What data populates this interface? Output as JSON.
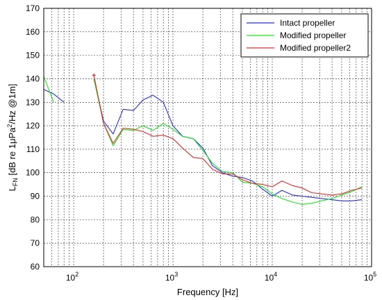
{
  "chart_data": {
    "type": "line",
    "xscale": "log",
    "xlabel": "Frequency [Hz]",
    "ylabel_main": "L",
    "ylabel_sub": "FN",
    "ylabel_rest": " [dB re 1",
    "ylabel_mu": "μ",
    "ylabel_pa": "Pa",
    "ylabel_sup": "2",
    "ylabel_end": "/Hz @1m]",
    "xlim": [
      50,
      100000
    ],
    "ylim": [
      60,
      170
    ],
    "yticks": [
      "60",
      "70",
      "80",
      "90",
      "100",
      "110",
      "120",
      "130",
      "140",
      "150",
      "160",
      "170"
    ],
    "xticks": [
      {
        "base": "10",
        "exp": "2"
      },
      {
        "base": "10",
        "exp": "3"
      },
      {
        "base": "10",
        "exp": "4"
      },
      {
        "base": "10",
        "exp": "5"
      }
    ],
    "grid": true,
    "legend_position": "top-right",
    "series": [
      {
        "name": "Intact propeller",
        "color": "#2a2ad6",
        "segments": [
          [
            [
              50,
              135.5
            ],
            [
              63,
              133.5
            ],
            [
              80,
              130
            ]
          ],
          [
            [
              160,
              140
            ],
            [
              200,
              122
            ],
            [
              250,
              116.5
            ],
            [
              315,
              127
            ],
            [
              400,
              126.5
            ],
            [
              500,
              131
            ],
            [
              630,
              133
            ],
            [
              800,
              130
            ],
            [
              1000,
              120
            ],
            [
              1250,
              115.5
            ],
            [
              1600,
              114.5
            ],
            [
              2000,
              110.5
            ],
            [
              2500,
              103
            ],
            [
              3150,
              100
            ],
            [
              4000,
              98.5
            ],
            [
              5000,
              98
            ],
            [
              6300,
              96.5
            ],
            [
              8000,
              93
            ],
            [
              10000,
              90
            ],
            [
              12500,
              92.5
            ],
            [
              16000,
              90.5
            ],
            [
              20000,
              90
            ],
            [
              25000,
              89.5
            ],
            [
              31500,
              89
            ],
            [
              40000,
              88.5
            ],
            [
              50000,
              88
            ],
            [
              63000,
              88
            ],
            [
              80000,
              88.5
            ]
          ]
        ]
      },
      {
        "name": "Modified propeller",
        "color": "#19e619",
        "segments": [
          [
            [
              50,
              141
            ],
            [
              63,
              130
            ]
          ],
          [
            [
              160,
              140
            ],
            [
              200,
              121
            ],
            [
              250,
              111.5
            ],
            [
              315,
              118.5
            ],
            [
              400,
              118
            ],
            [
              500,
              120
            ],
            [
              630,
              118
            ],
            [
              800,
              121
            ],
            [
              1000,
              118.5
            ],
            [
              1250,
              115.5
            ],
            [
              1600,
              114.5
            ],
            [
              2000,
              109.5
            ],
            [
              2500,
              104
            ],
            [
              3150,
              100.5
            ],
            [
              4000,
              100
            ],
            [
              5000,
              96
            ],
            [
              6300,
              95.5
            ],
            [
              8000,
              94
            ],
            [
              10000,
              91
            ],
            [
              12500,
              89
            ],
            [
              16000,
              87.5
            ],
            [
              20000,
              86.5
            ],
            [
              25000,
              87
            ],
            [
              31500,
              88
            ],
            [
              40000,
              89
            ],
            [
              50000,
              90.5
            ],
            [
              63000,
              92
            ],
            [
              80000,
              94
            ]
          ]
        ]
      },
      {
        "name": "Modified propeller2",
        "color": "#e02a2a",
        "segments": [
          [
            [
              160,
              141.5
            ],
            [
              200,
              121
            ],
            [
              250,
              112.5
            ],
            [
              315,
              119
            ],
            [
              400,
              118.5
            ],
            [
              500,
              117.5
            ],
            [
              630,
              115.5
            ],
            [
              800,
              116
            ],
            [
              1000,
              114.5
            ],
            [
              1250,
              110.5
            ],
            [
              1600,
              106.5
            ],
            [
              2000,
              106
            ],
            [
              2500,
              101.5
            ],
            [
              3150,
              99.5
            ],
            [
              4000,
              99.5
            ],
            [
              5000,
              97
            ],
            [
              6300,
              95.5
            ],
            [
              8000,
              95
            ],
            [
              10000,
              94
            ],
            [
              12500,
              96.5
            ],
            [
              16000,
              94.5
            ],
            [
              20000,
              93.5
            ],
            [
              25000,
              91.5
            ],
            [
              31500,
              91
            ],
            [
              40000,
              90.5
            ],
            [
              50000,
              91
            ],
            [
              63000,
              92.5
            ],
            [
              80000,
              93.5
            ]
          ]
        ]
      }
    ],
    "markers": [
      {
        "x": 160,
        "y": 141.5,
        "color": "#e02a2a"
      }
    ]
  }
}
